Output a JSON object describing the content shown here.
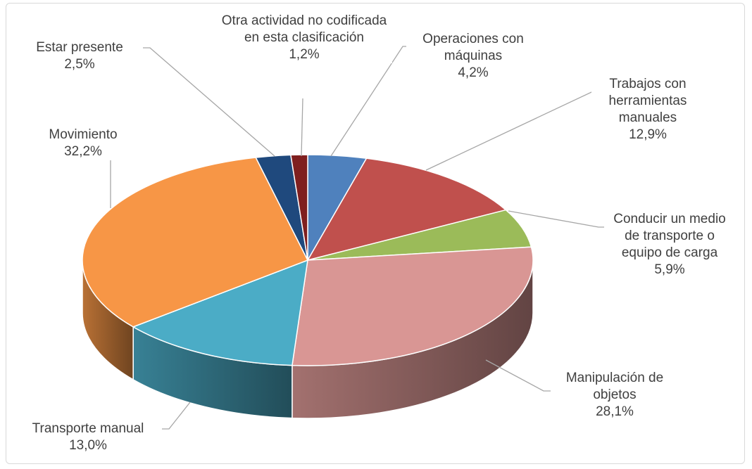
{
  "chart_data": {
    "type": "pie3d",
    "categories": [
      "Operaciones  con máquinas",
      "Trabajos con herramientas manuales",
      "Conducir un medio de transporte o equipo de carga",
      "Manipulación de objetos",
      "Transporte manual",
      "Movimiento",
      "Estar presente",
      "Otra actividad no codificada en esta clasificación"
    ],
    "values": [
      4.2,
      12.9,
      5.9,
      28.1,
      13.0,
      32.2,
      2.5,
      1.2
    ],
    "value_labels": [
      "4,2%",
      "12,9%",
      "5,9%",
      "28,1%",
      "13,0%",
      "32,2%",
      "2,5%",
      "1,2%"
    ],
    "colors": [
      "#4f81bd",
      "#c0504d",
      "#9bbb59",
      "#d99694",
      "#4bacc6",
      "#f79646",
      "#1f497d",
      "#7f1f1f"
    ]
  }
}
